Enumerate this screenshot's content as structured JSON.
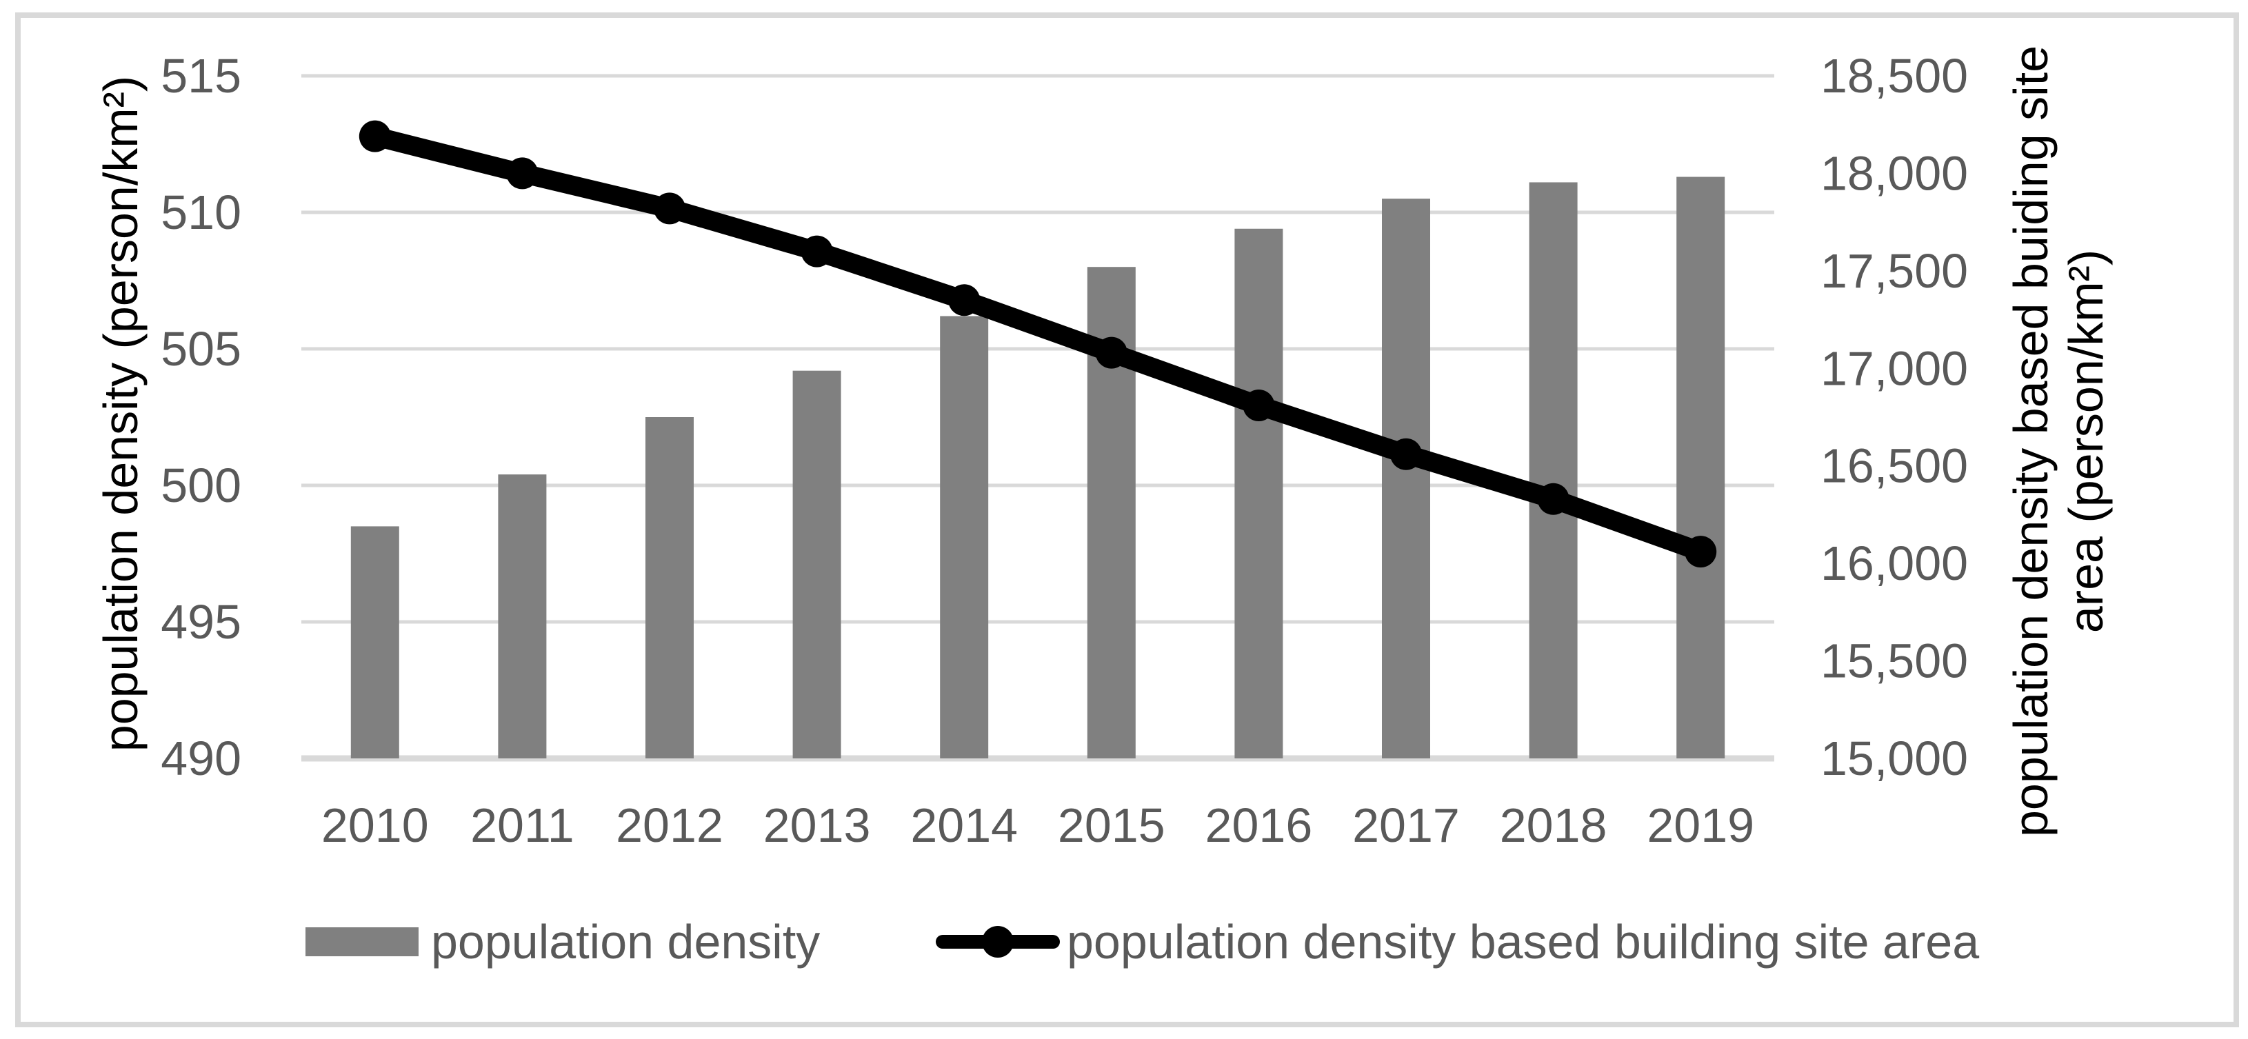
{
  "window": {
    "background": "#ffffff",
    "border_color": "#d9d9d9"
  },
  "chart_data": {
    "type": "bar+line",
    "categories": [
      "2010",
      "2011",
      "2012",
      "2013",
      "2014",
      "2015",
      "2016",
      "2017",
      "2018",
      "2019"
    ],
    "series": [
      {
        "name": "population density",
        "type": "bar",
        "axis": "left",
        "color": "#808080",
        "values": [
          498.5,
          500.4,
          502.5,
          504.2,
          506.2,
          508.0,
          509.4,
          510.5,
          511.1,
          511.3
        ]
      },
      {
        "name": "population density based building site area",
        "type": "line",
        "axis": "right",
        "color": "#000000",
        "marker": "circle",
        "values": [
          18190,
          18000,
          17820,
          17600,
          17350,
          17080,
          16810,
          16560,
          16330,
          16060
        ]
      }
    ],
    "left_axis": {
      "label": "population density (person/km²)",
      "min": 490,
      "max": 515,
      "tick_step": 5,
      "ticks": [
        490,
        495,
        500,
        505,
        510,
        515
      ],
      "tick_labels": [
        "490",
        "495",
        "500",
        "505",
        "510",
        "515"
      ]
    },
    "right_axis": {
      "label": "population density based buiding site area (person/km²)",
      "label_lines": [
        "population density based buiding site",
        "area (person/km²)"
      ],
      "min": 15000,
      "max": 18500,
      "tick_step": 500,
      "ticks": [
        15000,
        15500,
        16000,
        16500,
        17000,
        17500,
        18000,
        18500
      ],
      "tick_labels": [
        "15,000",
        "15,500",
        "16,000",
        "16,500",
        "17,000",
        "17,500",
        "18,000",
        "18,500"
      ]
    },
    "grid": true,
    "legend_position": "bottom",
    "style": {
      "gridline_color": "#d9d9d9",
      "axis_line_color": "#d9d9d9",
      "tick_text_color": "#595959",
      "axis_title_color": "#000000",
      "legend_text_color": "#595959",
      "plot_background": "#ffffff"
    }
  },
  "legend": {
    "items": [
      {
        "label": "population density",
        "swatch": "bar-swatch",
        "color": "#808080"
      },
      {
        "label": "population density based building site area",
        "swatch": "line-marker-swatch",
        "color": "#000000"
      }
    ]
  }
}
